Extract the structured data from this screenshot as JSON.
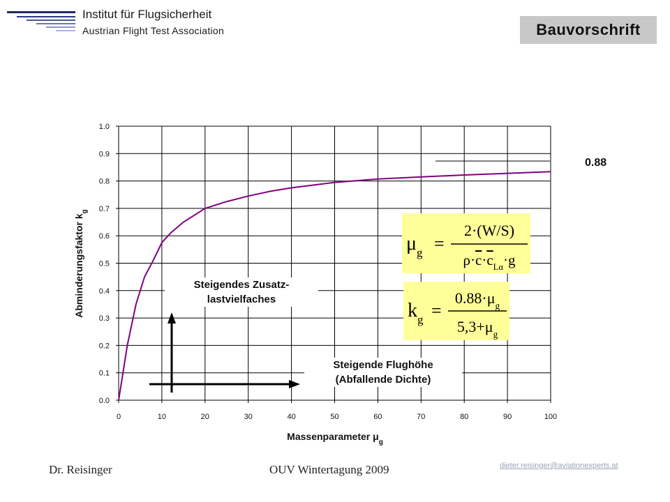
{
  "header": {
    "org_name": "Institut für Flugsicherheit",
    "org_sub": "Austrian Flight Test Association",
    "badge": "Bauvorschrift"
  },
  "footer": {
    "author": "Dr. Reisinger",
    "event": "OUV Wintertagung 2009",
    "email": "dieter.reisinger@aviationexperts.at"
  },
  "chart_data": {
    "type": "line",
    "xlabel": "Massenparameter μg",
    "ylabel": "Abminderungsfaktor kg",
    "xlim": [
      0,
      100
    ],
    "ylim": [
      0,
      1
    ],
    "xticks": [
      "0",
      "10",
      "20",
      "30",
      "40",
      "50",
      "60",
      "70",
      "80",
      "90",
      "100"
    ],
    "yticks": [
      "0.0",
      "0.1",
      "0.2",
      "0.3",
      "0.4",
      "0.5",
      "0.6",
      "0.7",
      "0.8",
      "0.9",
      "1.0"
    ],
    "grid": true,
    "series": [
      {
        "color": "#800080",
        "x": [
          0,
          2,
          4,
          6,
          8,
          10,
          12,
          15,
          20,
          25,
          30,
          35,
          40,
          50,
          60,
          70,
          80,
          90,
          100
        ],
        "y": [
          0.0,
          0.2,
          0.35,
          0.45,
          0.51,
          0.575,
          0.61,
          0.65,
          0.7,
          0.725,
          0.745,
          0.762,
          0.775,
          0.795,
          0.807,
          0.815,
          0.822,
          0.828,
          0.834
        ]
      }
    ],
    "asymptote_label": "0.88",
    "annotations": {
      "arrow_up_label_line1": "Steigendes Zusatz-",
      "arrow_up_label_line2": "lastvielfaches",
      "arrow_right_label_line1": "Steigende Flughöhe",
      "arrow_right_label_line2": "(Abfallende Dichte)"
    },
    "formulas": {
      "mu_g": {
        "lhs": "μg",
        "numerator": "2·(W/S)",
        "denominator": "ρ·c·cLα·g"
      },
      "k_g": {
        "lhs": "kg",
        "numerator": "0.88·μg",
        "denominator": "5,3+μg"
      }
    }
  }
}
